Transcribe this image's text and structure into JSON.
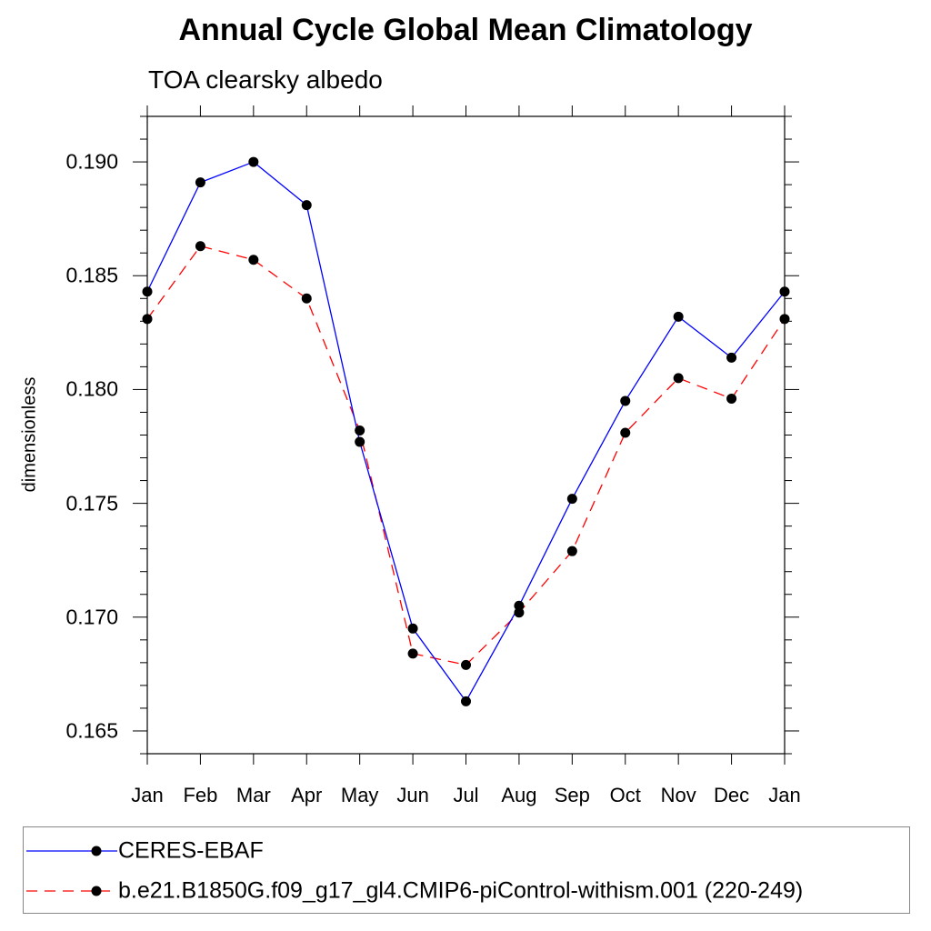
{
  "chart_data": {
    "type": "line",
    "title": "Annual Cycle Global Mean Climatology",
    "subtitle": "TOA clearsky albedo",
    "ylabel": "dimensionless",
    "xlabel": "",
    "categories": [
      "Jan",
      "Feb",
      "Mar",
      "Apr",
      "May",
      "Jun",
      "Jul",
      "Aug",
      "Sep",
      "Oct",
      "Nov",
      "Dec",
      "Jan"
    ],
    "ylim": [
      0.164,
      0.192
    ],
    "yticks": [
      "0.165",
      "0.170",
      "0.175",
      "0.180",
      "0.185",
      "0.190"
    ],
    "series": [
      {
        "name": "CERES-EBAF",
        "color": "#0000ff",
        "dash": "solid",
        "values": [
          0.1843,
          0.1891,
          0.19,
          0.1881,
          0.1777,
          0.1695,
          0.1663,
          0.1705,
          0.1752,
          0.1795,
          0.1832,
          0.1814,
          0.1843
        ]
      },
      {
        "name": "b.e21.B1850G.f09_g17_gl4.CMIP6-piControl-withism.001 (220-249)",
        "color": "#ff0000",
        "dash": "dashed",
        "values": [
          0.1831,
          0.1863,
          0.1857,
          0.184,
          0.1782,
          0.1684,
          0.1679,
          0.1702,
          0.1729,
          0.1781,
          0.1805,
          0.1796,
          0.1831
        ]
      }
    ],
    "legend_position": "bottom"
  }
}
